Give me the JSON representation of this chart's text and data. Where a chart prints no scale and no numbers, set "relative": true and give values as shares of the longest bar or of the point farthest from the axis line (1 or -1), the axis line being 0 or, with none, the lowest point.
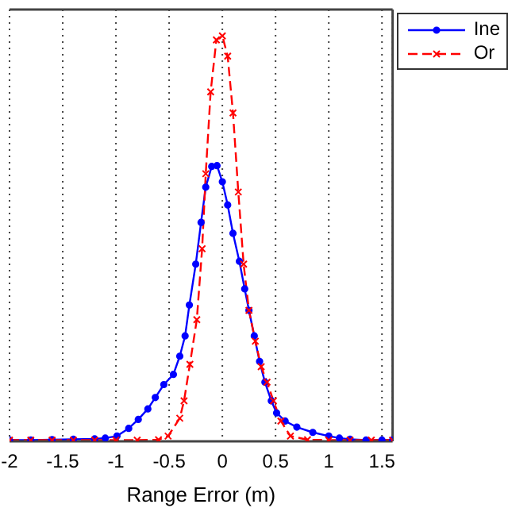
{
  "chart_data": {
    "type": "line",
    "relative": true,
    "xlabel": "Range Error (m)",
    "xlim": [
      -2,
      1.6
    ],
    "xticks": [
      -2,
      -1.5,
      -1,
      -0.5,
      0,
      0.5,
      1,
      1.5
    ],
    "grid": true,
    "legend": "top right",
    "series": [
      {
        "name": "Ine",
        "color": "#0000ff",
        "marker": "circle",
        "line_style": "solid",
        "x": [
          -2,
          -1.8,
          -1.6,
          -1.4,
          -1.2,
          -1.1,
          -0.99,
          -0.88,
          -0.79,
          -0.7,
          -0.63,
          -0.55,
          -0.46,
          -0.4,
          -0.35,
          -0.31,
          -0.25,
          -0.2,
          -0.156,
          -0.1,
          -0.05,
          0,
          0.05,
          0.1,
          0.16,
          0.21,
          0.25,
          0.3,
          0.35,
          0.4,
          0.46,
          0.51,
          0.59,
          0.7,
          0.85,
          1,
          1.1,
          1.2,
          1.35,
          1.5,
          1.6
        ],
        "values": [
          0.003,
          0.003,
          0.004,
          0.005,
          0.006,
          0.008,
          0.013,
          0.032,
          0.054,
          0.08,
          0.108,
          0.14,
          0.165,
          0.21,
          0.26,
          0.336,
          0.437,
          0.54,
          0.627,
          0.678,
          0.68,
          0.64,
          0.583,
          0.513,
          0.444,
          0.376,
          0.323,
          0.26,
          0.197,
          0.146,
          0.1,
          0.07,
          0.05,
          0.035,
          0.022,
          0.013,
          0.008,
          0.005,
          0.003,
          0.003,
          0.003
        ]
      },
      {
        "name": "Or",
        "color": "#ff0000",
        "marker": "cross",
        "line_style": "dashed",
        "x": [
          -2,
          -1.8,
          -1.6,
          -1.4,
          -1.2,
          -1,
          -0.8,
          -0.6,
          -0.51,
          -0.4,
          -0.36,
          -0.305,
          -0.24,
          -0.19,
          -0.156,
          -0.11,
          -0.056,
          0,
          0.05,
          0.1,
          0.15,
          0.2,
          0.25,
          0.31,
          0.365,
          0.42,
          0.48,
          0.55,
          0.64,
          0.8,
          1,
          1.2,
          1.4,
          1.6
        ],
        "values": [
          0.003,
          0.003,
          0.003,
          0.003,
          0.003,
          0.003,
          0.003,
          0.004,
          0.013,
          0.057,
          0.1,
          0.19,
          0.3,
          0.475,
          0.66,
          0.862,
          0.99,
          1,
          0.95,
          0.81,
          0.615,
          0.437,
          0.323,
          0.247,
          0.184,
          0.146,
          0.1,
          0.05,
          0.013,
          0.004,
          0.003,
          0.003,
          0.003,
          0.003
        ]
      }
    ]
  }
}
